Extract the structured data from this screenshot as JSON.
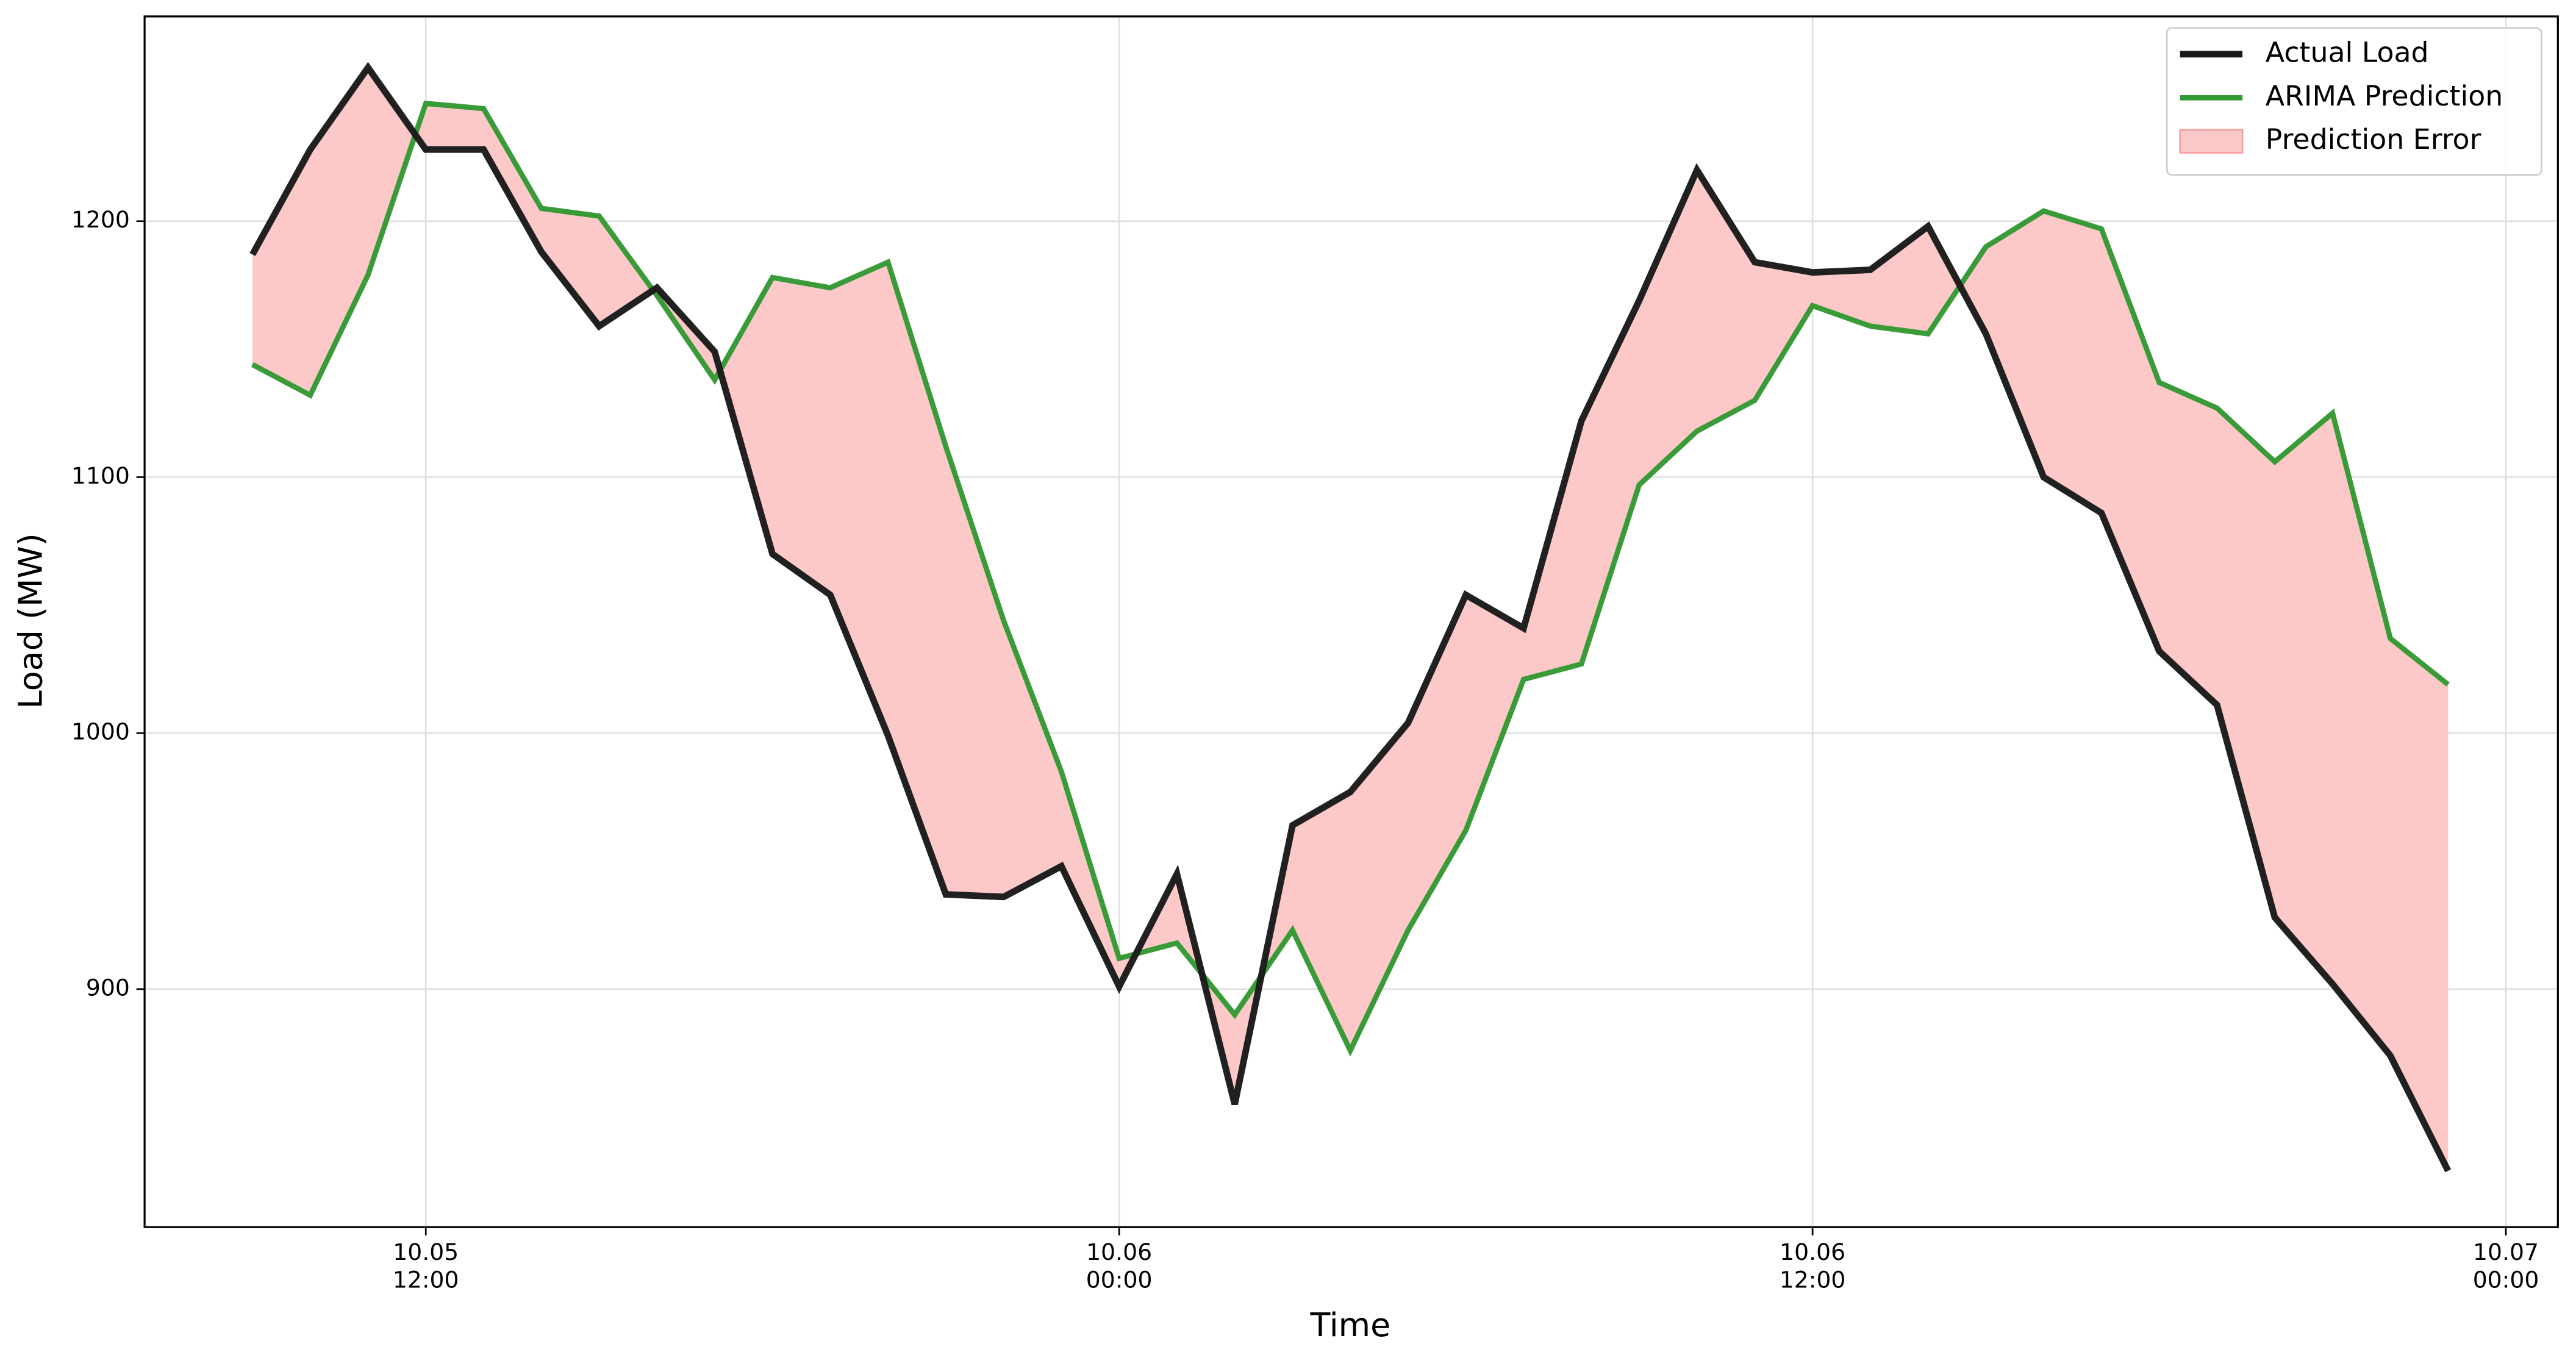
{
  "chart_data": {
    "type": "line",
    "xlabel": "Time",
    "ylabel": "Load (MW)",
    "x": [
      "10.05 09:00",
      "10.05 10:00",
      "10.05 11:00",
      "10.05 12:00",
      "10.05 13:00",
      "10.05 14:00",
      "10.05 15:00",
      "10.05 16:00",
      "10.05 17:00",
      "10.05 18:00",
      "10.05 19:00",
      "10.05 20:00",
      "10.05 21:00",
      "10.05 22:00",
      "10.05 23:00",
      "10.06 00:00",
      "10.06 01:00",
      "10.06 02:00",
      "10.06 03:00",
      "10.06 04:00",
      "10.06 05:00",
      "10.06 06:00",
      "10.06 07:00",
      "10.06 08:00",
      "10.06 09:00",
      "10.06 10:00",
      "10.06 11:00",
      "10.06 12:00",
      "10.06 13:00",
      "10.06 14:00",
      "10.06 15:00",
      "10.06 16:00",
      "10.06 17:00",
      "10.06 18:00",
      "10.06 19:00",
      "10.06 20:00",
      "10.06 21:00",
      "10.06 22:00",
      "10.06 23:00"
    ],
    "series": [
      {
        "name": "Actual Load",
        "color": "#1a1a1a",
        "width": 4,
        "values": [
          1187,
          1228,
          1260,
          1228,
          1228,
          1188,
          1159,
          1174,
          1149,
          1070,
          1054,
          999,
          937,
          936,
          948,
          901,
          945,
          855,
          964,
          977,
          1004,
          1054,
          1041,
          1122,
          1169,
          1220,
          1184,
          1180,
          1181,
          1198,
          1156,
          1100,
          1086,
          1032,
          1011,
          928,
          902,
          874,
          829
        ]
      },
      {
        "name": "ARIMA Prediction",
        "color": "#339933",
        "width": 3.2,
        "values": [
          1144,
          1132,
          1179,
          1246,
          1244,
          1205,
          1202,
          1171,
          1138,
          1178,
          1174,
          1184,
          1112,
          1044,
          985,
          912,
          918,
          890,
          923,
          876,
          923,
          962,
          1021,
          1027,
          1097,
          1118,
          1130,
          1167,
          1159,
          1156,
          1190,
          1204,
          1197,
          1137,
          1127,
          1106,
          1125,
          1037,
          1019
        ]
      }
    ],
    "fill_between": {
      "name": "Prediction Error",
      "color": "#fcc8c8"
    },
    "xlim": [
      "10.05 07:08",
      "10.07 00:54"
    ],
    "xticks": [
      {
        "value": "10.05 12:00",
        "label": "10.05\n12:00"
      },
      {
        "value": "10.06 00:00",
        "label": "10.06\n00:00"
      },
      {
        "value": "10.06 12:00",
        "label": "10.06\n12:00"
      },
      {
        "value": "10.07 00:00",
        "label": "10.07\n00:00"
      }
    ],
    "ylim": [
      807,
      1280
    ],
    "yticks": [
      900,
      1000,
      1100,
      1200
    ],
    "grid": true,
    "legend": "upper right"
  }
}
